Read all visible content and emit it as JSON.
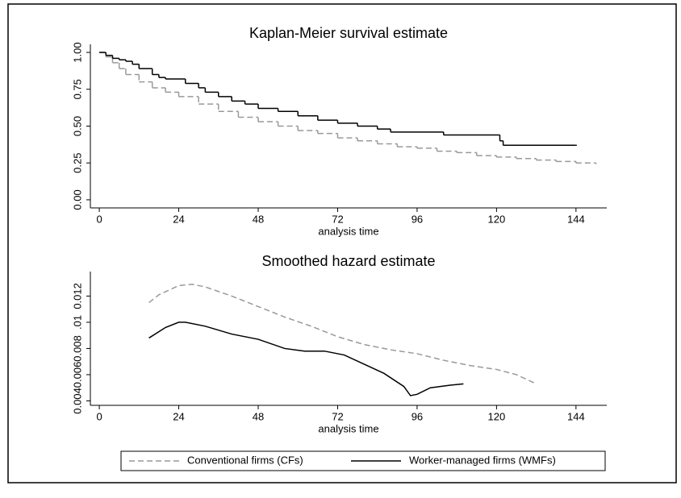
{
  "chart_data": [
    {
      "type": "line",
      "step": true,
      "title": "Kaplan-Meier survival estimate",
      "x_label": "analysis time",
      "xlim": [
        -2.7,
        153.3
      ],
      "xticks": [
        0,
        24,
        48,
        72,
        96,
        120,
        144
      ],
      "ylim": [
        -0.055,
        1.055
      ],
      "yticks": [
        {
          "value": 0,
          "label": "0.00"
        },
        {
          "value": 0.25,
          "label": "0.25"
        },
        {
          "value": 0.5,
          "label": "0.50"
        },
        {
          "value": 0.75,
          "label": "0.75"
        },
        {
          "value": 1,
          "label": "1.00"
        }
      ],
      "series": [
        {
          "name": "Conventional firms (CFs)",
          "color": "#999999",
          "dash": true,
          "x": [
            0,
            2,
            4,
            6,
            8,
            12,
            16,
            20,
            24,
            30,
            36,
            42,
            48,
            54,
            60,
            66,
            72,
            78,
            84,
            90,
            96,
            102,
            108,
            114,
            120,
            126,
            132,
            138,
            144,
            150
          ],
          "values": [
            1.0,
            0.97,
            0.93,
            0.89,
            0.85,
            0.8,
            0.76,
            0.73,
            0.7,
            0.65,
            0.6,
            0.56,
            0.53,
            0.5,
            0.47,
            0.45,
            0.42,
            0.4,
            0.38,
            0.36,
            0.35,
            0.33,
            0.32,
            0.3,
            0.29,
            0.28,
            0.27,
            0.26,
            0.25,
            0.245
          ]
        },
        {
          "name": "Worker-managed firms (WMFs)",
          "color": "#000000",
          "dash": false,
          "x": [
            0,
            2,
            4,
            6,
            8,
            10,
            12,
            16,
            18,
            20,
            26,
            30,
            32,
            36,
            40,
            44,
            48,
            54,
            60,
            66,
            72,
            78,
            84,
            88,
            104,
            121,
            122,
            144
          ],
          "values": [
            1.0,
            0.98,
            0.96,
            0.95,
            0.94,
            0.92,
            0.89,
            0.85,
            0.83,
            0.82,
            0.79,
            0.76,
            0.73,
            0.7,
            0.67,
            0.65,
            0.62,
            0.6,
            0.57,
            0.54,
            0.52,
            0.5,
            0.48,
            0.46,
            0.44,
            0.4,
            0.37,
            0.37
          ]
        }
      ]
    },
    {
      "type": "line",
      "step": false,
      "title": "Smoothed hazard estimate",
      "x_label": "analysis time",
      "xlim": [
        -2.7,
        153.3
      ],
      "xticks": [
        0,
        24,
        48,
        72,
        96,
        120,
        144
      ],
      "ylim": [
        0.00366,
        0.01387
      ],
      "yticks": [
        0.004,
        0.006,
        0.008,
        {
          "value": 0.01,
          "label": ".01"
        },
        0.012
      ],
      "series": [
        {
          "color": "#999999",
          "dash": true,
          "x": [
            15,
            18,
            24,
            28,
            32,
            40,
            48,
            56,
            64,
            72,
            80,
            88,
            96,
            104,
            112,
            120,
            126,
            132
          ],
          "values": [
            0.0115,
            0.0121,
            0.0128,
            0.0129,
            0.0127,
            0.012,
            0.0112,
            0.0104,
            0.0097,
            0.0089,
            0.0083,
            0.0079,
            0.0076,
            0.0071,
            0.0067,
            0.0064,
            0.006,
            0.0053
          ]
        },
        {
          "color": "#000000",
          "dash": false,
          "x": [
            15,
            20,
            24,
            26,
            32,
            40,
            48,
            56,
            62,
            68,
            74,
            80,
            86,
            92,
            94,
            96,
            100,
            106,
            110
          ],
          "values": [
            0.0088,
            0.0096,
            0.01,
            0.01,
            0.0097,
            0.0091,
            0.0087,
            0.008,
            0.0078,
            0.0078,
            0.0075,
            0.0068,
            0.0061,
            0.0051,
            0.0044,
            0.0045,
            0.005,
            0.0052,
            0.0053
          ]
        }
      ]
    }
  ]
}
